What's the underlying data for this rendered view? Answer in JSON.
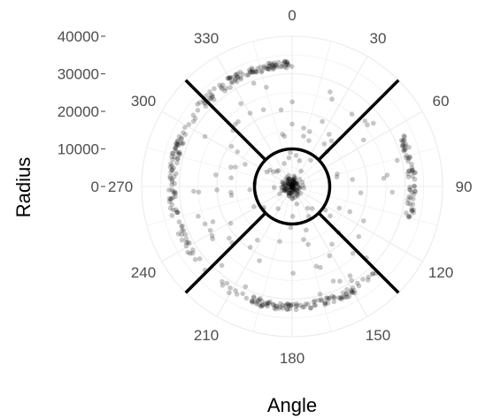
{
  "chart_data": {
    "type": "scatter",
    "coordinate_system": "polar",
    "xlabel": "Angle",
    "ylabel": "Radius",
    "angle_ticks": [
      "0",
      "30",
      "60",
      "90",
      "120",
      "150",
      "180",
      "210",
      "240",
      "270",
      "300",
      "330"
    ],
    "radius_ticks": [
      "0",
      "10000",
      "20000",
      "30000",
      "40000"
    ],
    "radius_range": [
      0,
      40000
    ],
    "angle_range": [
      0,
      360
    ],
    "grid": true,
    "point_color": "#000000",
    "point_alpha": 0.22,
    "overlay": {
      "circle_radius": 10000,
      "diagonal_lines_deg": [
        45,
        135,
        225,
        315
      ],
      "line_color": "#000000"
    },
    "clusters": [
      {
        "angle_range": [
          330,
          360
        ],
        "radius_range": [
          31500,
          33500
        ],
        "count": 70
      },
      {
        "angle_range": [
          282,
          330
        ],
        "radius_range": [
          31000,
          33500
        ],
        "count": 45
      },
      {
        "angle_range": [
          250,
          292
        ],
        "radius_range": [
          31000,
          33000
        ],
        "count": 55
      },
      {
        "angle_range": [
          205,
          250
        ],
        "radius_range": [
          31000,
          33000
        ],
        "count": 25
      },
      {
        "angle_range": [
          160,
          205
        ],
        "radius_range": [
          31000,
          33000
        ],
        "count": 75
      },
      {
        "angle_range": [
          135,
          160
        ],
        "radius_range": [
          31000,
          33000
        ],
        "count": 30
      },
      {
        "angle_range": [
          65,
          105
        ],
        "radius_range": [
          31000,
          33000
        ],
        "count": 60
      },
      {
        "angle_range": [
          0,
          360
        ],
        "radius_range": [
          0,
          3000
        ],
        "count": 120
      },
      {
        "angle_range": [
          0,
          360
        ],
        "radius_range": [
          2000,
          30000
        ],
        "count": 120
      }
    ]
  }
}
